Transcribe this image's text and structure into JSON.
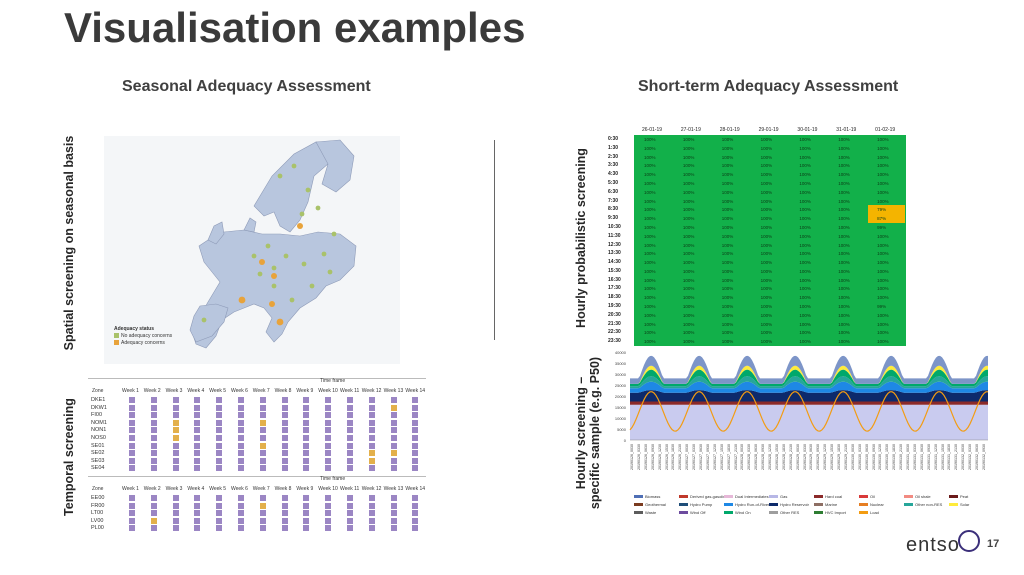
{
  "title": "Visualisation examples",
  "seasonal": {
    "heading": "Seasonal Adequacy Assessment",
    "spatial_label": "Spatial screening on seasonal basis",
    "temporal_label": "Temporal screening",
    "map_legend": {
      "title": "Adequacy status",
      "items": [
        "No adequacy concerns",
        "Adequacy concerns"
      ],
      "colors": [
        "#a9c26a",
        "#e8a33b"
      ]
    },
    "timeframe_label": "Time frame",
    "zone_header": "Zone",
    "weeks": [
      "Week 1",
      "Week 2",
      "Week 3",
      "Week 4",
      "Week 5",
      "Week 6",
      "Week 7",
      "Week 8",
      "Week 9",
      "Week 10",
      "Week 11",
      "Week 12",
      "Week 13",
      "Week 14"
    ],
    "table1_zones": [
      "DKE1",
      "DKW1",
      "FI00",
      "NOM1",
      "NON1",
      "NOS0",
      "SE01",
      "SE02",
      "SE03",
      "SE04"
    ],
    "table2_zones": [
      "EE00",
      "FR00",
      "LT00",
      "LV00",
      "PL00"
    ]
  },
  "short_term": {
    "heading": "Short-term Adequacy Assessment",
    "prob_label": "Hourly probabilistic screening",
    "sample_label_line1": "Hourly screening –",
    "sample_label_line2": "specific sample (e.g. P50)",
    "dates": [
      "26-01-19",
      "27-01-19",
      "28-01-19",
      "29-01-19",
      "30-01-19",
      "31-01-19",
      "01-02-19"
    ],
    "times": [
      "0:30",
      "1:30",
      "2:30",
      "3:30",
      "4:30",
      "5:30",
      "6:30",
      "7:30",
      "8:30",
      "9:30",
      "10:30",
      "11:30",
      "12:30",
      "13:30",
      "14:30",
      "15:30",
      "16:30",
      "17:30",
      "18:30",
      "19:30",
      "20:30",
      "21:30",
      "22:30",
      "23:30"
    ],
    "cell_value": "100%",
    "exceptions": [
      {
        "row": 8,
        "col": 6,
        "value": "79%"
      },
      {
        "row": 9,
        "col": 6,
        "value": "87%"
      },
      {
        "row": 10,
        "col": 6,
        "value": "99%"
      },
      {
        "row": 19,
        "col": 6,
        "value": "99%"
      }
    ],
    "chart_yticks": [
      "40000",
      "35000",
      "30000",
      "25000",
      "20000",
      "15000",
      "10000",
      "5000",
      "0"
    ],
    "legend": [
      {
        "name": "Biomass",
        "color": "#4f6fb5"
      },
      {
        "name": "Derived gas-gasoline",
        "color": "#c0392b"
      },
      {
        "name": "Dual Intermediates",
        "color": "#e6b8d8"
      },
      {
        "name": "Gas",
        "color": "#b7b7e6"
      },
      {
        "name": "Hard coal",
        "color": "#8b2a2a"
      },
      {
        "name": "Oil",
        "color": "#d93a3a"
      },
      {
        "name": "Oil shale",
        "color": "#f28b82"
      },
      {
        "name": "Peat",
        "color": "#6b1b1b"
      },
      {
        "name": "Geothermal",
        "color": "#7a3b1f"
      },
      {
        "name": "Hydro Pump",
        "color": "#1f4e79"
      },
      {
        "name": "Hydro Run-of-River",
        "color": "#1e88e5"
      },
      {
        "name": "Hydro Reservoir",
        "color": "#0d2a6b"
      },
      {
        "name": "Marine",
        "color": "#8d6e63"
      },
      {
        "name": "Nuclear",
        "color": "#e67e22"
      },
      {
        "name": "Other non-RES",
        "color": "#26a69a"
      },
      {
        "name": "Solar",
        "color": "#ffeb3b"
      },
      {
        "name": "Waste",
        "color": "#5c5c5c"
      },
      {
        "name": "Wind Off",
        "color": "#6d4c9f"
      },
      {
        "name": "Wind On",
        "color": "#00a86b"
      },
      {
        "name": "Other RES",
        "color": "#9e9e9e"
      },
      {
        "name": "HVC Import",
        "color": "#2e7d32"
      },
      {
        "name": "Load",
        "color": "#f39c12"
      }
    ]
  },
  "footer": {
    "logo": "entso",
    "page": "17"
  }
}
